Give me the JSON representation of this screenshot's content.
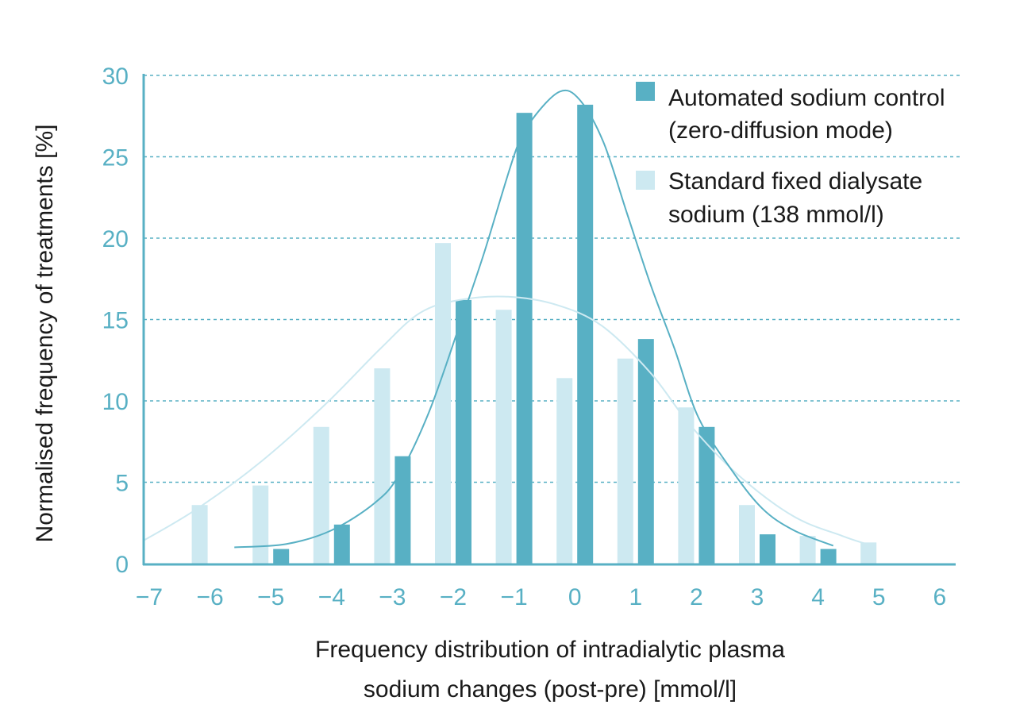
{
  "chart_data": {
    "type": "bar",
    "title": "",
    "xlabel": [
      "Frequency distribution of intradialytic plasma",
      "sodium changes (post-pre) [mmol/l]"
    ],
    "ylabel": "Normalised frequency of treatments [%]",
    "xlim": [
      -7,
      6
    ],
    "ylim": [
      0,
      30
    ],
    "x_ticks": [
      "−7",
      "−6",
      "−5",
      "−4",
      "−3",
      "−2",
      "−1",
      "0",
      "1",
      "2",
      "3",
      "4",
      "5",
      "6"
    ],
    "y_ticks": [
      "0",
      "5",
      "10",
      "15",
      "20",
      "25",
      "30"
    ],
    "grid": "horizontal dashed",
    "legend_position": "top-right",
    "colors": {
      "automated": "#58b0c4",
      "standard": "#cde9f1",
      "axis": "#58b0c4"
    },
    "categories": [
      -6,
      -5,
      -4,
      -3,
      -2,
      -1,
      0,
      1,
      2,
      3,
      4,
      5
    ],
    "series": [
      {
        "name": "Standard fixed dialysate sodium (138 mmol/l)",
        "legend_lines": [
          "Standard fixed dialysate",
          "sodium (138 mmol/l)"
        ],
        "values": [
          3.6,
          4.8,
          8.4,
          12.0,
          19.7,
          15.6,
          11.4,
          12.6,
          9.6,
          3.6,
          1.7,
          1.3
        ],
        "fit_curve": [
          [
            -7.1,
            1.4
          ],
          [
            -6.2,
            3.4
          ],
          [
            -5.15,
            6.3
          ],
          [
            -4.1,
            9.8
          ],
          [
            -3.2,
            13.2
          ],
          [
            -2.55,
            15.4
          ],
          [
            -1.9,
            16.2
          ],
          [
            -1.1,
            16.4
          ],
          [
            -0.3,
            15.9
          ],
          [
            0.45,
            14.6
          ],
          [
            1.25,
            11.7
          ],
          [
            1.9,
            8.5
          ],
          [
            2.7,
            5.4
          ],
          [
            3.6,
            2.9
          ],
          [
            4.4,
            1.7
          ],
          [
            4.8,
            1.2
          ]
        ]
      },
      {
        "name": "Automated sodium control (zero-diffusion mode)",
        "legend_lines": [
          "Automated sodium control",
          "(zero-diffusion mode)"
        ],
        "values": [
          null,
          0.9,
          2.4,
          6.6,
          16.2,
          27.7,
          28.2,
          13.8,
          8.4,
          1.8,
          0.9,
          null
        ],
        "fit_curve": [
          [
            -5.6,
            1.0
          ],
          [
            -4.75,
            1.2
          ],
          [
            -4.0,
            2.05
          ],
          [
            -3.3,
            3.7
          ],
          [
            -2.9,
            5.4
          ],
          [
            -2.4,
            9.3
          ],
          [
            -1.9,
            14.6
          ],
          [
            -1.5,
            19.0
          ],
          [
            -0.97,
            25.4
          ],
          [
            -0.7,
            27.3
          ],
          [
            -0.25,
            29.0
          ],
          [
            0.08,
            28.5
          ],
          [
            0.47,
            25.9
          ],
          [
            0.86,
            21.5
          ],
          [
            1.25,
            17.1
          ],
          [
            1.64,
            13.2
          ],
          [
            2.03,
            9.0
          ],
          [
            2.56,
            5.85
          ],
          [
            3.08,
            3.4
          ],
          [
            3.6,
            2.05
          ],
          [
            4.25,
            1.1
          ]
        ]
      }
    ]
  }
}
